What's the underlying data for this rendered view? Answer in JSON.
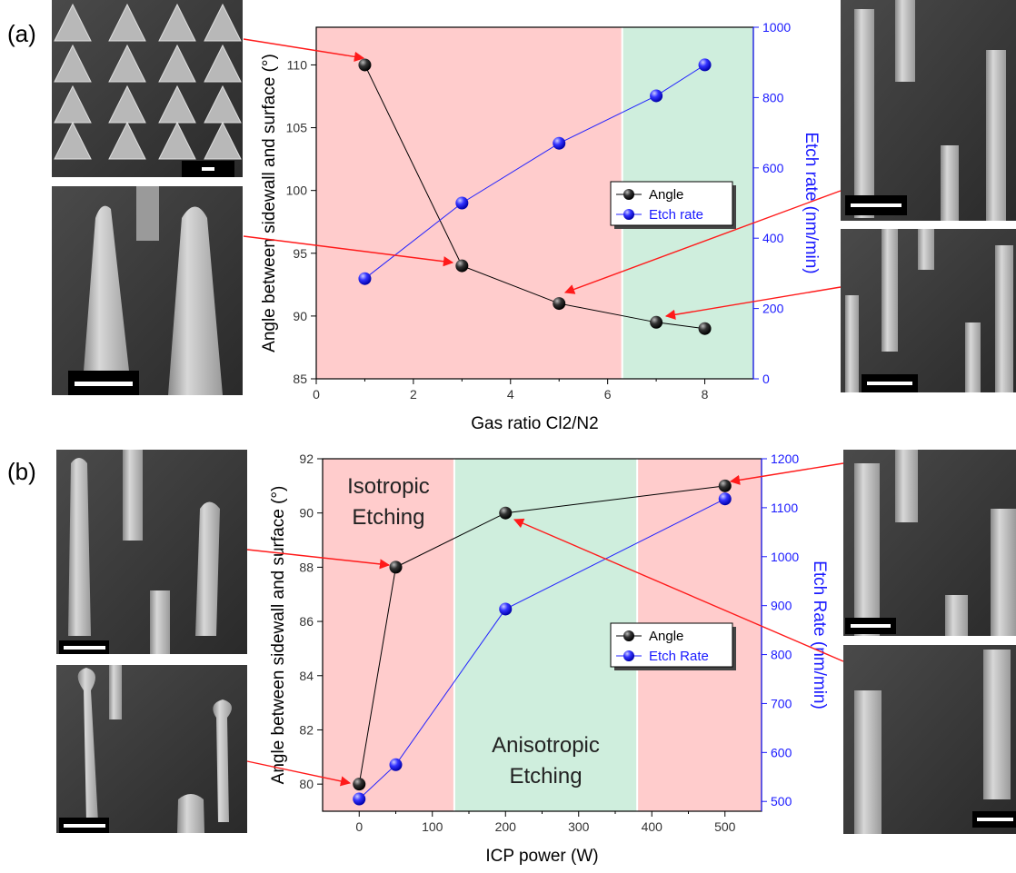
{
  "panels": [
    {
      "label": "(a)",
      "chart_data": {
        "type": "line",
        "xlabel": "Gas ratio Cl2/N2",
        "ylabel": "Angle between sidewall and surface (°)",
        "y2label": "Etch rate (nm/min)",
        "xlim": [
          0,
          9
        ],
        "ylim": [
          85,
          113
        ],
        "y2lim": [
          0,
          1000
        ],
        "xticks": [
          0,
          2,
          4,
          6,
          8
        ],
        "yticks": [
          85,
          90,
          95,
          100,
          105,
          110
        ],
        "y2ticks": [
          0,
          200,
          400,
          600,
          800,
          1000
        ],
        "grid": false,
        "legend_position": "middle-right",
        "regions": [
          {
            "from": 0,
            "to": 6.3,
            "color": "#ffcccc",
            "label": ""
          },
          {
            "from": 6.3,
            "to": 9,
            "color": "#cfeedd",
            "label": ""
          }
        ],
        "series": [
          {
            "name": "Angle",
            "axis": "left",
            "color": "#000000",
            "x": [
              1,
              3,
              5,
              7,
              8
            ],
            "values": [
              110,
              94,
              91,
              89.5,
              89
            ]
          },
          {
            "name": "Etch rate",
            "axis": "right",
            "color": "#2222ff",
            "x": [
              1,
              3,
              5,
              7,
              8
            ],
            "values": [
              285,
              500,
              670,
              805,
              893
            ]
          }
        ]
      }
    },
    {
      "label": "(b)",
      "chart_data": {
        "type": "line",
        "xlabel": "ICP power (W)",
        "ylabel": "Angle between sidewall and surface (°)",
        "y2label": "Etch Rate (nm/min)",
        "xlim": [
          -50,
          550
        ],
        "ylim": [
          79,
          92
        ],
        "y2lim": [
          480,
          1200
        ],
        "xticks": [
          0,
          100,
          200,
          300,
          400,
          500
        ],
        "yticks": [
          80,
          82,
          84,
          86,
          88,
          90,
          92
        ],
        "y2ticks": [
          500,
          600,
          700,
          800,
          900,
          1000,
          1100,
          1200
        ],
        "grid": false,
        "legend_position": "middle-right",
        "regions": [
          {
            "from": -50,
            "to": 130,
            "color": "#ffcccc",
            "label": [
              "Isotropic",
              "Etching"
            ]
          },
          {
            "from": 130,
            "to": 380,
            "color": "#cfeedd",
            "label": [
              "Anisotropic",
              "Etching"
            ]
          },
          {
            "from": 380,
            "to": 550,
            "color": "#ffcccc",
            "label": ""
          }
        ],
        "series": [
          {
            "name": "Angle",
            "axis": "left",
            "color": "#000000",
            "x": [
              0,
              50,
              200,
              500
            ],
            "values": [
              80,
              88,
              90,
              91
            ]
          },
          {
            "name": "Etch Rate",
            "axis": "right",
            "color": "#2222ff",
            "x": [
              0,
              50,
              200,
              500
            ],
            "values": [
              505,
              575,
              893,
              1118
            ]
          }
        ]
      }
    }
  ]
}
